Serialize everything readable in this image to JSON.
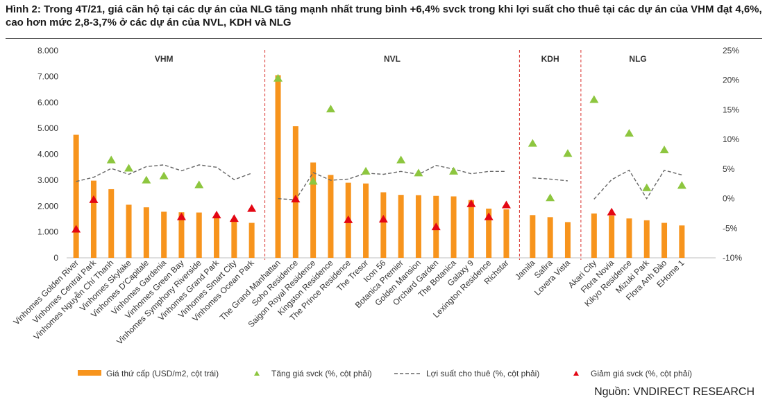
{
  "title": "Hình 2: Trong 4T/21, giá căn hộ tại các dự án của NLG tăng mạnh nhất trung bình +6,4% svck trong khi lợi suất cho thuê tại các dự án của VHM đạt 4,6%, cao hơn mức 2,8-3,7% ở các dự án của NVL, KDH và NLG",
  "source": "Nguồn: VNDIRECT RESEARCH",
  "colors": {
    "bar": "#F7941D",
    "increase": "#8DC63F",
    "decrease": "#E30613",
    "yield_line": "#666666",
    "group_divider": "#D9302B",
    "axis_text": "#333333"
  },
  "chart_data": {
    "type": "bar",
    "y_left": {
      "min": 0,
      "max": 8000,
      "ticks": [
        "0",
        "1.000",
        "2.000",
        "3.000",
        "4.000",
        "5.000",
        "6.000",
        "7.000",
        "8.000"
      ]
    },
    "y_right": {
      "min": -10,
      "max": 25,
      "ticks": [
        "-10%",
        "-5%",
        "0%",
        "5%",
        "10%",
        "15%",
        "20%",
        "25%"
      ]
    },
    "groups": [
      {
        "name": "VHM",
        "projects": [
          {
            "name": "Vinhomes Golden River",
            "price": 4750,
            "change": -5.2,
            "yield": 2.9
          },
          {
            "name": "Vinhomes Central Park",
            "price": 2980,
            "change": -0.2,
            "yield": 3.6
          },
          {
            "name": "Vinhomes Nguyễn Chí Thanh",
            "price": 2650,
            "change": 6.5,
            "yield": 5.1
          },
          {
            "name": "Vinhomes Skylake",
            "price": 2050,
            "change": 5.1,
            "yield": 4.1
          },
          {
            "name": "Vinhomes D'Capitale",
            "price": 1950,
            "change": 3.1,
            "yield": 5.4
          },
          {
            "name": "Vinhomes Gardenia",
            "price": 1780,
            "change": 3.8,
            "yield": 5.7
          },
          {
            "name": "Vinhomes Green Bay",
            "price": 1760,
            "change": -3.1,
            "yield": 4.7
          },
          {
            "name": "Vinhomes Symphony Riverside",
            "price": 1750,
            "change": 2.3,
            "yield": 5.7
          },
          {
            "name": "Vinhomes Grand Park",
            "price": 1590,
            "change": -2.8,
            "yield": 5.3
          },
          {
            "name": "Vinhomes Smart City",
            "price": 1420,
            "change": -3.4,
            "yield": 3.2
          },
          {
            "name": "Vinhomes Ocean Park",
            "price": 1350,
            "change": -1.7,
            "yield": 4.3
          }
        ]
      },
      {
        "name": "NVL",
        "projects": [
          {
            "name": "The Grand Manhattan",
            "price": 7050,
            "change": 20.3,
            "yield": 0.0
          },
          {
            "name": "Soho Residence",
            "price": 5080,
            "change": -0.1,
            "yield": -0.2
          },
          {
            "name": "Saigon Royal Residence",
            "price": 3680,
            "change": 2.9,
            "yield": 4.4
          },
          {
            "name": "Kingston Residence",
            "price": 3200,
            "change": 15.1,
            "yield": 3.1
          },
          {
            "name": "The Prince Residence",
            "price": 2900,
            "change": -3.6,
            "yield": 3.3
          },
          {
            "name": "The Tresor",
            "price": 2870,
            "change": 4.6,
            "yield": 4.3
          },
          {
            "name": "Icon 56",
            "price": 2530,
            "change": -3.5,
            "yield": 4.1
          },
          {
            "name": "Botanica Premier",
            "price": 2430,
            "change": 6.5,
            "yield": 4.6
          },
          {
            "name": "Golden Mansion",
            "price": 2420,
            "change": 4.3,
            "yield": 4.1
          },
          {
            "name": "Orchard Garden",
            "price": 2390,
            "change": -4.8,
            "yield": 5.6
          },
          {
            "name": "The Botanica",
            "price": 2370,
            "change": 4.6,
            "yield": 5.0
          },
          {
            "name": "Galaxy 9",
            "price": 2230,
            "change": -0.9,
            "yield": 4.2
          },
          {
            "name": "Lexington Residence",
            "price": 1900,
            "change": -3.1,
            "yield": 4.6
          },
          {
            "name": "Richstar",
            "price": 1870,
            "change": -1.1,
            "yield": 4.6
          }
        ]
      },
      {
        "name": "KDH",
        "projects": [
          {
            "name": "Jamila",
            "price": 1650,
            "change": 9.3,
            "yield": 3.5
          },
          {
            "name": "Safira",
            "price": 1570,
            "change": 0.1,
            "yield": 3.3
          },
          {
            "name": "Lovera Vista",
            "price": 1380,
            "change": 7.6,
            "yield": 3.0
          }
        ]
      },
      {
        "name": "NLG",
        "projects": [
          {
            "name": "Akari City",
            "price": 1710,
            "change": 16.7,
            "yield": -0.1
          },
          {
            "name": "Flora Novia",
            "price": 1630,
            "change": -2.3,
            "yield": 3.2
          },
          {
            "name": "Kikyo Residence",
            "price": 1520,
            "change": 11.0,
            "yield": 4.8
          },
          {
            "name": "Mizuki Park",
            "price": 1450,
            "change": 1.8,
            "yield": 0.0
          },
          {
            "name": "Flora Anh Đào",
            "price": 1350,
            "change": 8.2,
            "yield": 4.8
          },
          {
            "name": "EHome 1",
            "price": 1250,
            "change": 2.2,
            "yield": 4.0
          }
        ]
      }
    ],
    "legend": [
      {
        "key": "price",
        "label": "Giá thứ cấp (USD/m2, cột trái)"
      },
      {
        "key": "increase",
        "label": "Tăng giá svck (%, cột phải)"
      },
      {
        "key": "yield",
        "label": "Lợi suất cho thuê (%, cột phải)"
      },
      {
        "key": "decrease",
        "label": "Giảm giá svck (%, cột phải)"
      }
    ],
    "legend_position": "bottom"
  }
}
